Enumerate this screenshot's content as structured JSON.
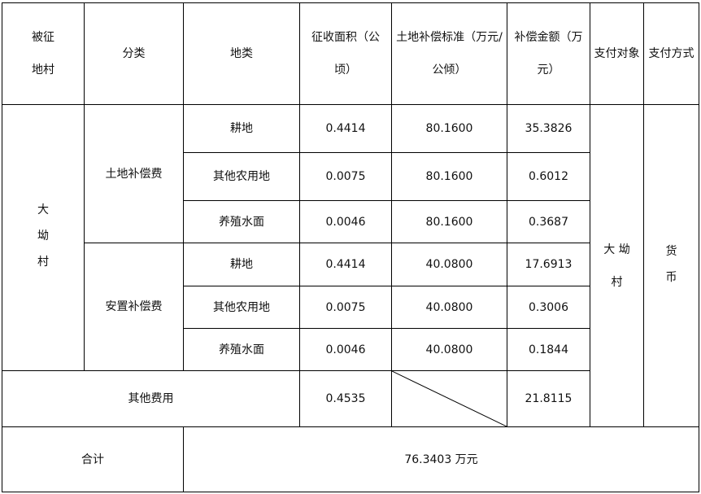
{
  "headers": [
    "被征地村",
    "分类",
    "地类",
    "征收面积（公顷）",
    "土地补偿标准（万元/公倾）",
    "补偿金额（万元）",
    "支付对象",
    "支付方式"
  ],
  "village": "大坳村",
  "payee": "大 坳村",
  "payment_method": "货币",
  "groups": [
    {
      "category": "土地补偿费",
      "rows": [
        {
          "land": "耕地",
          "area": "0.4414",
          "standard": "80.1600",
          "amount": "35.3826"
        },
        {
          "land": "其他农用地",
          "area": "0.0075",
          "standard": "80.1600",
          "amount": "0.6012"
        },
        {
          "land": "养殖水面",
          "area": "0.0046",
          "standard": "80.1600",
          "amount": "0.3687"
        }
      ]
    },
    {
      "category": "安置补偿费",
      "rows": [
        {
          "land": "耕地",
          "area": "0.4414",
          "standard": "40.0800",
          "amount": "17.6913"
        },
        {
          "land": "其他农用地",
          "area": "0.0075",
          "standard": "40.0800",
          "amount": "0.3006"
        },
        {
          "land": "养殖水面",
          "area": "0.0046",
          "standard": "40.0800",
          "amount": "0.1844"
        }
      ]
    }
  ],
  "other": {
    "label": "其他费用",
    "area": "0.4535",
    "amount": "21.8115"
  },
  "total": {
    "label": "合计",
    "value": "76.3403 万元"
  }
}
